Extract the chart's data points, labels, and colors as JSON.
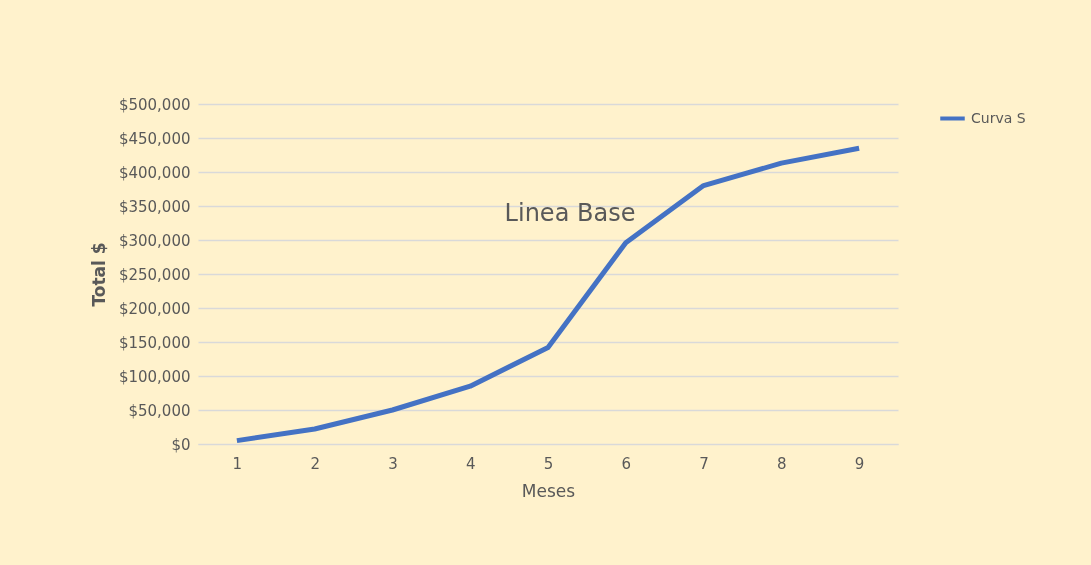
{
  "chart_data": {
    "type": "line",
    "xlabel": "Meses",
    "ylabel": "Total $",
    "annotations": [
      "Linea Base"
    ],
    "categories": [
      "1",
      "2",
      "3",
      "4",
      "5",
      "6",
      "7",
      "8",
      "9"
    ],
    "series": [
      {
        "name": "Curva S",
        "color": "#4472c4",
        "values": [
          5000,
          22000,
          50000,
          85000,
          142000,
          296000,
          380000,
          413000,
          435000
        ]
      }
    ],
    "ylim": [
      0,
      500000
    ],
    "yticks": [
      {
        "value": 0,
        "label": "$0"
      },
      {
        "value": 50000,
        "label": "$50,000"
      },
      {
        "value": 100000,
        "label": "$100,000"
      },
      {
        "value": 150000,
        "label": "$150,000"
      },
      {
        "value": 200000,
        "label": "$200,000"
      },
      {
        "value": 250000,
        "label": "$250,000"
      },
      {
        "value": 300000,
        "label": "$300,000"
      },
      {
        "value": 350000,
        "label": "$350,000"
      },
      {
        "value": 400000,
        "label": "$400,000"
      },
      {
        "value": 450000,
        "label": "$450,000"
      },
      {
        "value": 500000,
        "label": "$500,000"
      }
    ],
    "grid": "y",
    "legend": "right",
    "marker": "none",
    "line_style": "solid"
  }
}
